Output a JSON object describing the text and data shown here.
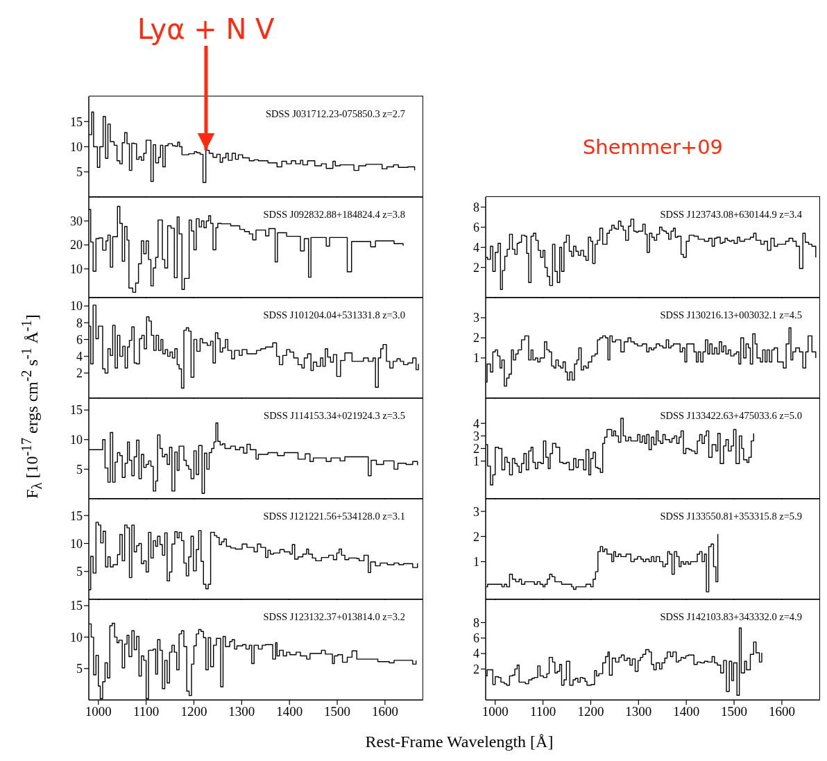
{
  "chart_data": [
    {
      "type": "step",
      "title": "SDSS J031712.23-075850.3 z=2.7",
      "color": "#000000",
      "xlim": [
        980,
        1680
      ],
      "ylim": [
        0,
        20
      ],
      "xticks": [
        1000,
        1100,
        1200,
        1300,
        1400,
        1500,
        1600
      ],
      "yticks": [
        5,
        10,
        15
      ],
      "tick_labels": "y",
      "annotations": [
        {
          "text": "Lyα + N V",
          "x": 1225,
          "y": 9.3
        }
      ],
      "x": [
        980,
        986,
        990,
        998,
        1003,
        1010,
        1015,
        1020,
        1025,
        1033,
        1039,
        1045,
        1050,
        1055,
        1060,
        1065,
        1070,
        1075,
        1080,
        1085,
        1090,
        1095,
        1100,
        1110,
        1115,
        1120,
        1126,
        1130,
        1135,
        1140,
        1146,
        1155,
        1161,
        1166,
        1170,
        1175,
        1189,
        1201,
        1206,
        1213,
        1219,
        1225,
        1232,
        1240,
        1248,
        1255,
        1260,
        1267,
        1272,
        1280,
        1287,
        1293,
        1302,
        1316,
        1326,
        1335,
        1355,
        1374,
        1384,
        1394,
        1404,
        1413,
        1423,
        1428,
        1438,
        1453,
        1467,
        1477,
        1491,
        1496,
        1506,
        1535,
        1545,
        1560,
        1594,
        1604,
        1618,
        1628,
        1648,
        1662
      ],
      "values": [
        12.4,
        16.9,
        10,
        5.9,
        10,
        16,
        7.7,
        14.5,
        11,
        10.3,
        7.2,
        6.6,
        10.8,
        12.8,
        10.6,
        5.3,
        10.7,
        10.6,
        7.5,
        8,
        7.3,
        8.7,
        11.3,
        3.1,
        10.4,
        6.8,
        7.9,
        10.3,
        6,
        10.2,
        10.6,
        10.2,
        10.1,
        10.9,
        10,
        8.4,
        8.6,
        9,
        8.8,
        8.5,
        2.9,
        9.3,
        8.7,
        7.9,
        8.5,
        6.9,
        7.8,
        8.7,
        7.3,
        8.7,
        7.5,
        8.4,
        7.8,
        7.2,
        7.4,
        7.2,
        6.8,
        6,
        7.1,
        6.6,
        7.2,
        6.6,
        7.3,
        6.4,
        7.2,
        6.2,
        6.6,
        5.7,
        7.1,
        6.2,
        6.4,
        5.3,
        6.2,
        6.5,
        5.6,
        6,
        6.4,
        5.9,
        6,
        5.3
      ]
    },
    {
      "type": "step",
      "title": "SDSS J092832.88+184824.4 z=3.8",
      "color": "#000000",
      "xlim": [
        980,
        1680
      ],
      "ylim": [
        -2,
        40
      ],
      "xticks": [
        1000,
        1100,
        1200,
        1300,
        1400,
        1500,
        1600
      ],
      "yticks": [
        10,
        20,
        30
      ],
      "tick_labels": "y",
      "x": [
        980,
        984,
        989,
        995,
        1001,
        1009,
        1016,
        1020,
        1025,
        1030,
        1040,
        1045,
        1050,
        1055,
        1060,
        1064,
        1072,
        1078,
        1084,
        1090,
        1095,
        1100,
        1105,
        1110,
        1115,
        1120,
        1125,
        1134,
        1139,
        1145,
        1152,
        1159,
        1165,
        1169,
        1175,
        1180,
        1185,
        1190,
        1195,
        1200,
        1205,
        1211,
        1216,
        1221,
        1226,
        1231,
        1235,
        1240,
        1246,
        1250,
        1257,
        1277,
        1296,
        1306,
        1316,
        1323,
        1330,
        1350,
        1357,
        1370,
        1375,
        1394,
        1423,
        1431,
        1440,
        1445,
        1477,
        1484,
        1521,
        1530,
        1570,
        1580,
        1619,
        1638
      ],
      "values": [
        34.8,
        21.2,
        9,
        22.6,
        22.9,
        17.8,
        21.7,
        24.1,
        10.7,
        23.4,
        36.1,
        29,
        13.2,
        27.7,
        22,
        2,
        0.2,
        4.1,
        12.1,
        21.7,
        16.3,
        21.7,
        13.9,
        2.9,
        10.4,
        14.8,
        30.4,
        13.9,
        10.4,
        28,
        27,
        6.3,
        31.7,
        24.6,
        1.4,
        6,
        6,
        30.4,
        25.8,
        18,
        30.9,
        27.5,
        30,
        27.2,
        30,
        32.2,
        29,
        18,
        27.2,
        29,
        28.8,
        28,
        26.5,
        25.6,
        24.6,
        22.1,
        26.2,
        23.8,
        26.8,
        12.9,
        25.1,
        23.6,
        17.5,
        22.6,
        6.5,
        23.1,
        19.5,
        23.1,
        8.8,
        21.4,
        19.2,
        21.7,
        20.5,
        19.7
      ]
    },
    {
      "type": "step",
      "title": "SDSS J101204.04+531331.8 z=3.0",
      "color": "#000000",
      "xlim": [
        980,
        1680
      ],
      "ylim": [
        -1,
        11
      ],
      "xticks": [
        1000,
        1100,
        1200,
        1300,
        1400,
        1500,
        1600
      ],
      "yticks": [
        2,
        4,
        6,
        8,
        10
      ],
      "tick_labels": "y",
      "ylabel": "F$_{λ}$ [10$^{-17}$ ergs cm$^{-2}$ s$^{-1}$ Å$^{-1}$]",
      "x": [
        980,
        984,
        989,
        995,
        1000,
        1009,
        1014,
        1020,
        1025,
        1030,
        1035,
        1040,
        1045,
        1051,
        1056,
        1061,
        1065,
        1070,
        1075,
        1080,
        1086,
        1091,
        1096,
        1101,
        1106,
        1111,
        1116,
        1121,
        1126,
        1131,
        1135,
        1140,
        1145,
        1150,
        1155,
        1160,
        1165,
        1169,
        1174,
        1179,
        1184,
        1189,
        1194,
        1200,
        1206,
        1213,
        1218,
        1228,
        1235,
        1240,
        1245,
        1250,
        1255,
        1260,
        1266,
        1271,
        1279,
        1285,
        1295,
        1301,
        1311,
        1321,
        1331,
        1340,
        1350,
        1365,
        1373,
        1379,
        1386,
        1394,
        1401,
        1409,
        1418,
        1426,
        1431,
        1438,
        1445,
        1450,
        1457,
        1465,
        1470,
        1475,
        1480,
        1486,
        1492,
        1499,
        1507,
        1516,
        1531,
        1540,
        1555,
        1565,
        1575,
        1580,
        1586,
        1591,
        1596,
        1603,
        1610,
        1617,
        1625,
        1632,
        1639,
        1648,
        1658,
        1665,
        1670
      ],
      "values": [
        7.6,
        3.1,
        10.1,
        6.1,
        7.6,
        2.5,
        2,
        4.9,
        4.1,
        7.7,
        2.6,
        6.5,
        4,
        5.2,
        2.6,
        5.1,
        5.9,
        7.5,
        3.2,
        3.1,
        6.1,
        6.5,
        4.9,
        8.7,
        8.2,
        6.5,
        4.7,
        6.5,
        4.7,
        6,
        4.3,
        4.8,
        4,
        4.5,
        3.8,
        4.9,
        3,
        2.5,
        0.2,
        7.1,
        7.4,
        7,
        1.5,
        6,
        4.6,
        6.1,
        5.6,
        5.3,
        5.8,
        3.2,
        6.8,
        6.1,
        4.5,
        5,
        6,
        4.7,
        3.7,
        4.7,
        4.1,
        4.8,
        4.3,
        4.3,
        4.7,
        4.9,
        5.1,
        5.6,
        4,
        3,
        4.1,
        4.8,
        4.5,
        3.8,
        3,
        2.6,
        3.8,
        4.3,
        2.3,
        3.3,
        2.8,
        3.8,
        2.8,
        4.9,
        3.9,
        3.3,
        4.2,
        1.6,
        3.5,
        4.4,
        3.4,
        3.4,
        3.8,
        3.4,
        3.8,
        0.3,
        3.8,
        4.9,
        5.4,
        3.4,
        2.6,
        3.4,
        3.7,
        3.4,
        3,
        3.2,
        3.8,
        2.4,
        3.1
      ]
    },
    {
      "type": "step",
      "title": "SDSS J114153.34+021924.3 z=3.5",
      "color": "#000000",
      "xlim": [
        980,
        1680
      ],
      "ylim": [
        0,
        17
      ],
      "xticks": [
        1000,
        1100,
        1200,
        1300,
        1400,
        1500,
        1600
      ],
      "yticks": [
        5,
        10,
        15
      ],
      "tick_labels": "y",
      "x": [
        980,
        1009,
        1014,
        1020,
        1025,
        1030,
        1035,
        1040,
        1045,
        1050,
        1056,
        1061,
        1065,
        1070,
        1075,
        1080,
        1085,
        1090,
        1095,
        1100,
        1105,
        1110,
        1115,
        1120,
        1124,
        1129,
        1134,
        1139,
        1144,
        1149,
        1154,
        1160,
        1165,
        1169,
        1179,
        1184,
        1189,
        1194,
        1200,
        1205,
        1210,
        1217,
        1222,
        1227,
        1232,
        1237,
        1242,
        1246,
        1250,
        1255,
        1260,
        1265,
        1277,
        1287,
        1296,
        1304,
        1311,
        1318,
        1330,
        1335,
        1355,
        1375,
        1389,
        1418,
        1433,
        1443,
        1450,
        1477,
        1487,
        1506,
        1516,
        1565,
        1571,
        1582,
        1597,
        1619,
        1627,
        1644,
        1658,
        1668
      ],
      "values": [
        8.3,
        10,
        5.2,
        2.8,
        11.2,
        2.8,
        6.2,
        7.8,
        7.3,
        3.6,
        6,
        9.6,
        6.5,
        3.9,
        7.1,
        9.9,
        3.4,
        7.5,
        5.3,
        5.8,
        6.4,
        5.5,
        1.3,
        3,
        10.8,
        8.5,
        7.1,
        7.5,
        5.8,
        8.7,
        1.3,
        7.9,
        4.8,
        8.9,
        6.5,
        5.6,
        5,
        3.4,
        8.1,
        4.1,
        9,
        0.9,
        7.7,
        5,
        7.8,
        8.5,
        9.6,
        12.8,
        9.7,
        9.1,
        9.3,
        8.5,
        8.9,
        8.3,
        8.7,
        7.7,
        9.2,
        8.3,
        6.7,
        7.5,
        7.8,
        7.3,
        7.8,
        6.7,
        7.6,
        6.3,
        6.9,
        6.3,
        6.9,
        6.4,
        7.1,
        3.9,
        6.5,
        5.8,
        6.4,
        5,
        6,
        5.8,
        6.3,
        5.7
      ]
    },
    {
      "type": "step",
      "title": "SDSS J121221.56+534128.0 z=3.1",
      "color": "#000000",
      "xlim": [
        980,
        1680
      ],
      "ylim": [
        0,
        18
      ],
      "xticks": [
        1000,
        1100,
        1200,
        1300,
        1400,
        1500,
        1600
      ],
      "yticks": [
        5,
        10,
        15
      ],
      "tick_labels": "y",
      "x": [
        980,
        984,
        989,
        995,
        1000,
        1005,
        1010,
        1015,
        1020,
        1025,
        1031,
        1040,
        1045,
        1050,
        1055,
        1060,
        1065,
        1070,
        1075,
        1080,
        1085,
        1090,
        1095,
        1100,
        1105,
        1110,
        1115,
        1120,
        1124,
        1129,
        1134,
        1139,
        1144,
        1149,
        1154,
        1160,
        1165,
        1169,
        1174,
        1179,
        1184,
        1189,
        1194,
        1199,
        1205,
        1210,
        1215,
        1220,
        1225,
        1230,
        1235,
        1243,
        1248,
        1253,
        1258,
        1263,
        1268,
        1277,
        1287,
        1301,
        1311,
        1326,
        1333,
        1340,
        1350,
        1355,
        1360,
        1367,
        1380,
        1389,
        1401,
        1406,
        1411,
        1418,
        1428,
        1436,
        1440,
        1448,
        1455,
        1467,
        1482,
        1492,
        1499,
        1504,
        1509,
        1516,
        1524,
        1541,
        1546,
        1556,
        1565,
        1570,
        1580,
        1590,
        1605,
        1619,
        1629,
        1639,
        1658,
        1668
      ],
      "values": [
        1.7,
        7.7,
        4.7,
        13.8,
        13.3,
        10.1,
        12.2,
        5.8,
        7.6,
        5.8,
        6.2,
        8,
        11.6,
        6.9,
        13.3,
        12.8,
        3.9,
        13.3,
        8.5,
        9.6,
        10,
        6.4,
        6.9,
        4.9,
        12,
        7.4,
        10.5,
        9.5,
        11.3,
        9.8,
        7.9,
        11.9,
        3.3,
        4.9,
        9.9,
        12.1,
        11,
        12,
        10.5,
        6.5,
        4.2,
        7.6,
        11.3,
        5.1,
        8.9,
        12.3,
        6.8,
        2.7,
        1.9,
        2.7,
        12,
        11.4,
        11.1,
        9.8,
        10.3,
        10.8,
        9.5,
        9.2,
        9,
        9.9,
        9.3,
        8.5,
        9.9,
        9.3,
        7.5,
        8.8,
        8.1,
        8.3,
        8.9,
        8.5,
        8.1,
        9.8,
        7.2,
        7.6,
        8.1,
        9,
        8.1,
        7.4,
        6.9,
        7.5,
        7.9,
        7.1,
        8.3,
        9,
        7.9,
        7.1,
        7.4,
        7.3,
        6.9,
        7.9,
        4.8,
        6.7,
        6,
        6.5,
        6.2,
        6.5,
        6.2,
        6.4,
        5.7,
        6.5
      ]
    },
    {
      "type": "step",
      "title": "SDSS J123132.37+013814.0 z=3.2",
      "color": "#000000",
      "xlim": [
        980,
        1680
      ],
      "ylim": [
        0,
        16
      ],
      "xticks": [
        1000,
        1100,
        1200,
        1300,
        1400,
        1500,
        1600
      ],
      "yticks": [
        5,
        10,
        15
      ],
      "xlabel": "Rest-Frame Wavelength [Å]",
      "x": [
        980,
        985,
        990,
        995,
        1000,
        1004,
        1009,
        1014,
        1019,
        1024,
        1029,
        1034,
        1039,
        1043,
        1050,
        1055,
        1060,
        1064,
        1070,
        1075,
        1080,
        1085,
        1090,
        1095,
        1100,
        1105,
        1115,
        1120,
        1124,
        1129,
        1134,
        1139,
        1144,
        1149,
        1154,
        1159,
        1164,
        1169,
        1174,
        1179,
        1185,
        1190,
        1195,
        1200,
        1205,
        1210,
        1215,
        1220,
        1225,
        1230,
        1235,
        1241,
        1247,
        1256,
        1261,
        1266,
        1275,
        1280,
        1285,
        1290,
        1302,
        1309,
        1316,
        1321,
        1326,
        1335,
        1343,
        1350,
        1365,
        1371,
        1374,
        1379,
        1387,
        1394,
        1401,
        1414,
        1423,
        1436,
        1443,
        1467,
        1475,
        1490,
        1494,
        1501,
        1511,
        1521,
        1531,
        1541,
        1585,
        1609,
        1619,
        1658,
        1665
      ],
      "values": [
        12.1,
        10,
        4,
        7.1,
        2.2,
        0.2,
        2.9,
        5.9,
        3.5,
        11.8,
        12.2,
        10,
        9.1,
        9.5,
        5.1,
        8.9,
        10.3,
        6.9,
        11,
        8,
        10.1,
        3.8,
        7,
        6.3,
        0.2,
        7.9,
        8.1,
        4.1,
        9.6,
        7.9,
        1.8,
        6.3,
        2.7,
        7.6,
        8.7,
        7.6,
        4.8,
        10.5,
        11,
        8.5,
        1.4,
        0.7,
        5.7,
        8.6,
        10.5,
        11.2,
        10.9,
        9.9,
        4.8,
        9.9,
        5.3,
        8.7,
        9.8,
        2.1,
        10.1,
        8.5,
        9.3,
        9.6,
        8.1,
        8.6,
        8.8,
        8.1,
        8.7,
        5.8,
        8.7,
        8.1,
        8.7,
        8.8,
        6.5,
        9.1,
        7,
        7.9,
        7,
        7.6,
        7.2,
        7.6,
        7,
        6.5,
        7.4,
        7.9,
        7.3,
        5.8,
        7,
        7.2,
        6,
        6.8,
        7.8,
        6.5,
        6.1,
        5.9,
        6.3,
        5.7,
        6.3
      ]
    },
    {
      "type": "step",
      "title": "SDSS J123743.08+630144.9 z=3.4",
      "color": "#000000",
      "xlim": [
        980,
        1680
      ],
      "ylim": [
        -1,
        9
      ],
      "xticks": [
        1000,
        1100,
        1200,
        1300,
        1400,
        1500,
        1600
      ],
      "yticks": [
        2,
        4,
        6,
        8
      ],
      "tick_labels": "y",
      "annotations": [
        "Shemmer+09"
      ],
      "x": [
        981,
        984,
        990,
        995,
        1000,
        1006,
        1011,
        1015,
        1020,
        1025,
        1030,
        1036,
        1041,
        1046,
        1050,
        1055,
        1062,
        1066,
        1070,
        1075,
        1080,
        1085,
        1090,
        1095,
        1100,
        1104,
        1109,
        1114,
        1120,
        1125,
        1130,
        1135,
        1139,
        1144,
        1149,
        1155,
        1160,
        1164,
        1169,
        1174,
        1179,
        1185,
        1190,
        1195,
        1200,
        1204,
        1209,
        1214,
        1219,
        1225,
        1229,
        1234,
        1239,
        1244,
        1249,
        1253,
        1258,
        1263,
        1268,
        1273,
        1279,
        1284,
        1290,
        1295,
        1299,
        1309,
        1314,
        1318,
        1323,
        1328,
        1333,
        1338,
        1344,
        1349,
        1353,
        1358,
        1363,
        1368,
        1373,
        1377,
        1382,
        1389,
        1394,
        1400,
        1406,
        1416,
        1425,
        1438,
        1447,
        1454,
        1459,
        1464,
        1471,
        1476,
        1481,
        1486,
        1490,
        1495,
        1500,
        1507,
        1512,
        1522,
        1534,
        1541,
        1546,
        1556,
        1563,
        1570,
        1577,
        1584,
        1591,
        1601,
        1608,
        1615,
        1623,
        1630,
        1637,
        1644,
        1649,
        1656,
        1663,
        1671
      ],
      "values": [
        3,
        2.8,
        4.1,
        1.6,
        3.5,
        4.4,
        -0.2,
        1.7,
        3.1,
        3.8,
        5.3,
        3.8,
        3.3,
        4.4,
        4.5,
        5.2,
        5.1,
        3.4,
        0.5,
        5.1,
        5.4,
        4.7,
        3.7,
        3,
        3.7,
        2,
        1.1,
        0.2,
        4.3,
        1.6,
        0.5,
        4,
        1.6,
        4.5,
        5.2,
        3.6,
        3.1,
        4.1,
        3.6,
        3.2,
        3.7,
        3.1,
        2.7,
        5,
        4.6,
        2.4,
        4.3,
        4.7,
        5.9,
        4.3,
        4.3,
        5.4,
        5.7,
        6.2,
        5.9,
        5.8,
        6.6,
        6.1,
        5.7,
        4.7,
        6.1,
        6.8,
        5.6,
        5.5,
        5.6,
        6.3,
        5.3,
        3.5,
        5.4,
        5,
        4.7,
        5.3,
        6,
        5.7,
        5.6,
        5.4,
        4.8,
        5.6,
        5.9,
        5,
        5.1,
        3.3,
        3,
        4.6,
        5.2,
        5.1,
        4.8,
        4.6,
        4.9,
        4.1,
        4.9,
        5,
        4.4,
        4.5,
        4.9,
        4.7,
        4.6,
        4.7,
        4.4,
        5,
        4.6,
        4.8,
        5,
        5.4,
        4.7,
        4.3,
        4.6,
        3.7,
        4.9,
        4.1,
        4.3,
        4.3,
        4.6,
        4.9,
        4.6,
        4.1,
        1.9,
        5.4,
        4.5,
        4.3,
        4.1,
        3
      ]
    },
    {
      "type": "step",
      "title": "SDSS J130216.13+003032.1 z=4.5",
      "color": "#000000",
      "xlim": [
        980,
        1680
      ],
      "ylim": [
        -1,
        4
      ],
      "xticks": [
        1000,
        1100,
        1200,
        1300,
        1400,
        1500,
        1600
      ],
      "yticks": [
        1,
        2,
        3
      ],
      "tick_labels": "y",
      "x": [
        981,
        983,
        990,
        995,
        1000,
        1005,
        1010,
        1014,
        1019,
        1024,
        1029,
        1034,
        1038,
        1043,
        1048,
        1055,
        1062,
        1070,
        1075,
        1079,
        1084,
        1089,
        1094,
        1103,
        1108,
        1113,
        1118,
        1123,
        1127,
        1132,
        1137,
        1142,
        1147,
        1151,
        1156,
        1161,
        1166,
        1171,
        1175,
        1180,
        1185,
        1190,
        1195,
        1202,
        1209,
        1214,
        1219,
        1225,
        1231,
        1236,
        1240,
        1245,
        1252,
        1263,
        1270,
        1278,
        1284,
        1291,
        1298,
        1308,
        1317,
        1322,
        1327,
        1332,
        1337,
        1344,
        1351,
        1358,
        1363,
        1368,
        1373,
        1387,
        1392,
        1397,
        1401,
        1416,
        1421,
        1425,
        1430,
        1435,
        1440,
        1445,
        1449,
        1454,
        1459,
        1464,
        1469,
        1474,
        1478,
        1483,
        1488,
        1493,
        1500,
        1505,
        1510,
        1514,
        1520,
        1525,
        1530,
        1534,
        1539,
        1544,
        1548,
        1555,
        1560,
        1565,
        1569,
        1574,
        1579,
        1584,
        1591,
        1603,
        1609,
        1615,
        1619,
        1623,
        1629,
        1637,
        1644,
        1650,
        1655,
        1663,
        1671
      ],
      "values": [
        -0.2,
        0.7,
        0.3,
        1.3,
        1.4,
        1.1,
        0.5,
        0.9,
        -0.4,
        0,
        0.2,
        1.4,
        0.9,
        1.2,
        1.4,
        1.9,
        2.1,
        0.9,
        1.4,
        0.9,
        1,
        0.8,
        1,
        1.8,
        1.4,
        1.3,
        0.6,
        0.5,
        0.9,
        0.6,
        0.5,
        0.8,
        0.3,
        -0.1,
        0.3,
        -0.1,
        0.7,
        0.9,
        1.5,
        0.4,
        0.6,
        0.5,
        0.8,
        1.1,
        1.2,
        1.9,
        2,
        2.1,
        2,
        0.9,
        2.1,
        1.8,
        1.9,
        1.3,
        1.8,
        2,
        1.8,
        1.7,
        1.6,
        1.7,
        1.3,
        1.5,
        1.4,
        1.5,
        1.7,
        1.6,
        1.5,
        1.9,
        1.5,
        1.6,
        1.7,
        1.3,
        1.5,
        0.8,
        1.7,
        1.3,
        0.8,
        1.3,
        0.8,
        1.3,
        1.9,
        1.2,
        1.7,
        1.2,
        1.5,
        1.2,
        1.8,
        1.3,
        1.6,
        1.2,
        1.4,
        1.1,
        1.2,
        1.3,
        0.7,
        2,
        1,
        1.7,
        1.5,
        0.7,
        2.2,
        1.7,
        1,
        0.8,
        1.4,
        0.8,
        1.4,
        0.8,
        1.4,
        1.5,
        0.8,
        0.5,
        1.7,
        2.5,
        0.9,
        1.3,
        1.5,
        1.3,
        0.5,
        1.3,
        2.1,
        1.3,
        1
      ]
    },
    {
      "type": "step",
      "title": "SDSS J133422.63+475033.6 z=5.0",
      "color": "#000000",
      "xlim": [
        980,
        1680
      ],
      "ylim": [
        -2,
        6
      ],
      "xticks": [
        1000,
        1100,
        1200,
        1300,
        1400,
        1500,
        1600
      ],
      "yticks": [
        1,
        2,
        3,
        4
      ],
      "tick_labels": "y",
      "x": [
        981,
        984,
        990,
        995,
        1000,
        1007,
        1014,
        1020,
        1025,
        1030,
        1036,
        1041,
        1046,
        1050,
        1055,
        1060,
        1065,
        1070,
        1075,
        1079,
        1084,
        1089,
        1096,
        1101,
        1106,
        1111,
        1115,
        1120,
        1127,
        1135,
        1142,
        1149,
        1155,
        1164,
        1169,
        1174,
        1185,
        1190,
        1196,
        1200,
        1205,
        1210,
        1215,
        1220,
        1225,
        1229,
        1234,
        1244,
        1248,
        1252,
        1258,
        1263,
        1268,
        1273,
        1279,
        1284,
        1298,
        1303,
        1308,
        1313,
        1317,
        1322,
        1327,
        1332,
        1337,
        1341,
        1346,
        1351,
        1356,
        1365,
        1370,
        1375,
        1380,
        1385,
        1389,
        1394,
        1399,
        1406,
        1411,
        1418,
        1423,
        1428,
        1433,
        1438,
        1442,
        1447,
        1454,
        1462,
        1466,
        1471,
        1478,
        1483,
        1488,
        1494,
        1499,
        1504,
        1511,
        1516,
        1520,
        1527,
        1531,
        1536,
        1541
      ],
      "values": [
        2.3,
        0.6,
        -0.9,
        -0.1,
        2.1,
        2,
        0.3,
        1.3,
        0.9,
        -0.1,
        1.2,
        0.8,
        0.6,
        0.1,
        0.8,
        1.6,
        0.3,
        1.8,
        2.1,
        0.9,
        0.4,
        0.9,
        0.8,
        2.6,
        1.3,
        0.4,
        1.6,
        2.4,
        2.1,
        0.9,
        0.8,
        0.9,
        0.3,
        1.2,
        0.5,
        1.1,
        0.3,
        1.9,
        -0.1,
        1.2,
        1.7,
        0.5,
        0.4,
        0.1,
        2.4,
        2.9,
        3.5,
        3,
        3.4,
        3,
        2.5,
        4.4,
        3,
        2.6,
        2.9,
        2.6,
        3.1,
        2.5,
        3,
        2.4,
        3.1,
        1.9,
        2.9,
        2.3,
        3.4,
        2.6,
        2.4,
        3.1,
        2.7,
        2.5,
        2.8,
        3,
        2.4,
        2.9,
        3.4,
        1.6,
        2,
        1.9,
        1.8,
        1.6,
        2.6,
        3.1,
        2.4,
        3,
        3.4,
        1.3,
        2.3,
        1.8,
        3.2,
        0.8,
        2.2,
        2.7,
        1.8,
        2.2,
        3.5,
        0.8,
        3,
        2,
        1.1,
        0.9,
        1.3,
        2.6,
        3.2
      ]
    },
    {
      "type": "step",
      "title": "SDSS J133550.81+353315.8 z=5.9",
      "color": "#000000",
      "xlim": [
        980,
        1680
      ],
      "ylim": [
        -0.5,
        3.5
      ],
      "xticks": [
        1000,
        1100,
        1200,
        1300,
        1400,
        1500,
        1600
      ],
      "yticks": [
        1,
        2,
        3
      ],
      "tick_labels": "y",
      "x": [
        981,
        984,
        1014,
        1019,
        1024,
        1030,
        1036,
        1043,
        1050,
        1055,
        1062,
        1082,
        1088,
        1094,
        1100,
        1104,
        1109,
        1114,
        1119,
        1125,
        1139,
        1160,
        1164,
        1169,
        1190,
        1200,
        1205,
        1210,
        1215,
        1220,
        1225,
        1229,
        1234,
        1244,
        1248,
        1252,
        1258,
        1263,
        1274,
        1284,
        1291,
        1298,
        1305,
        1310,
        1315,
        1322,
        1327,
        1332,
        1337,
        1344,
        1351,
        1356,
        1361,
        1365,
        1370,
        1375,
        1380,
        1385,
        1389,
        1394,
        1399,
        1404,
        1409,
        1423,
        1428,
        1433,
        1438,
        1442,
        1447,
        1452,
        1457,
        1462,
        1466
      ],
      "values": [
        0,
        0.1,
        0,
        0.1,
        0,
        0.5,
        0.3,
        0.2,
        0.3,
        0.1,
        0.2,
        0.1,
        0.2,
        0.1,
        0,
        0.1,
        0.3,
        0.5,
        0.4,
        0.2,
        0.1,
        0,
        -0.1,
        0,
        0.1,
        0,
        0.3,
        0.6,
        1.4,
        1.6,
        1.4,
        1.5,
        1.3,
        1,
        1.4,
        1.2,
        1.3,
        1.2,
        1.3,
        1,
        1.1,
        1.2,
        1.1,
        1,
        1.1,
        1,
        1.2,
        1,
        1.2,
        1,
        0.8,
        0.9,
        1.4,
        1.3,
        0.5,
        1.4,
        1.2,
        0.8,
        1,
        0.9,
        1,
        0.9,
        1,
        1.3,
        1.4,
        1,
        1.3,
        -0.2,
        1.6,
        1.7,
        0.8,
        0.2,
        2.1
      ]
    },
    {
      "type": "step",
      "title": "SDSS J142103.83+343332.0 z=4.9",
      "color": "#000000",
      "xlim": [
        980,
        1680
      ],
      "ylim": [
        -2,
        11
      ],
      "xticks": [
        1000,
        1100,
        1200,
        1300,
        1400,
        1500,
        1600
      ],
      "yticks": [
        2,
        4,
        6,
        8
      ],
      "x": [
        981,
        983,
        995,
        1000,
        1007,
        1012,
        1019,
        1024,
        1030,
        1036,
        1041,
        1046,
        1050,
        1063,
        1070,
        1077,
        1082,
        1089,
        1094,
        1101,
        1108,
        1113,
        1120,
        1125,
        1130,
        1135,
        1139,
        1144,
        1149,
        1156,
        1163,
        1168,
        1173,
        1178,
        1183,
        1188,
        1192,
        1201,
        1208,
        1212,
        1217,
        1225,
        1231,
        1236,
        1239,
        1245,
        1252,
        1259,
        1264,
        1270,
        1276,
        1282,
        1287,
        1293,
        1299,
        1304,
        1309,
        1315,
        1322,
        1327,
        1332,
        1337,
        1344,
        1349,
        1355,
        1360,
        1367,
        1372,
        1379,
        1384,
        1389,
        1394,
        1399,
        1404,
        1416,
        1423,
        1430,
        1438,
        1445,
        1454,
        1459,
        1465,
        1472,
        1478,
        1484,
        1490,
        1495,
        1499,
        1506,
        1511,
        1515,
        1522,
        1526,
        1534,
        1541,
        1546,
        1553,
        1558
      ],
      "values": [
        1.1,
        1.9,
        0,
        1,
        0.9,
        0.3,
        0.1,
        -0.1,
        1.1,
        1.2,
        2,
        2.5,
        0.3,
        0.1,
        0.6,
        0.8,
        0.9,
        2.4,
        1.1,
        0.9,
        1.4,
        3.5,
        2.9,
        1.5,
        1.7,
        2.6,
        -0.1,
        0.6,
        3,
        -0.1,
        0.6,
        0.8,
        0.3,
        0.9,
        0.8,
        0.4,
        -0.1,
        0,
        1.8,
        1.1,
        1.4,
        2.8,
        3.6,
        4.2,
        1.2,
        3.4,
        2.9,
        3.5,
        3.8,
        3.1,
        3.4,
        2.5,
        3.3,
        1.7,
        3.1,
        3.5,
        3.9,
        4.5,
        4.2,
        2.6,
        1.9,
        2.8,
        2,
        2.8,
        3.4,
        4.2,
        3.6,
        4.2,
        2.9,
        3.1,
        3.5,
        3.4,
        3.7,
        3.8,
        2.6,
        2.9,
        2.8,
        3,
        2.9,
        3.6,
        2.8,
        2.5,
        1.5,
        3.1,
        -0.9,
        3,
        0.5,
        2.8,
        -1.4,
        7.3,
        1.5,
        3,
        1.9,
        3.9,
        5.5,
        4.1,
        2.9,
        4.1
      ]
    }
  ]
}
